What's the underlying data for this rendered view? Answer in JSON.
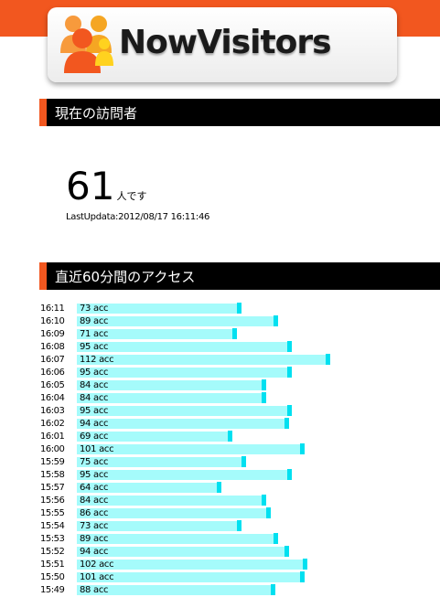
{
  "logo": {
    "text": "NowVisitors",
    "people-icon": "people-group-icon"
  },
  "colors": {
    "orange": "#f2571f",
    "bar": "#a5fbfb",
    "bar_cap": "#00e0f0",
    "header_bg": "#000000"
  },
  "current": {
    "header": "現在の訪問者",
    "count": "61",
    "unit": "人です",
    "last_update": "LastUpdata:2012/08/17 16:11:46"
  },
  "access": {
    "header": "直近60分間のアクセス",
    "rows": [
      {
        "time": "16:11",
        "value": 73,
        "label": "73 acc"
      },
      {
        "time": "16:10",
        "value": 89,
        "label": "89 acc"
      },
      {
        "time": "16:09",
        "value": 71,
        "label": "71 acc"
      },
      {
        "time": "16:08",
        "value": 95,
        "label": "95 acc"
      },
      {
        "time": "16:07",
        "value": 112,
        "label": "112 acc"
      },
      {
        "time": "16:06",
        "value": 95,
        "label": "95 acc"
      },
      {
        "time": "16:05",
        "value": 84,
        "label": "84 acc"
      },
      {
        "time": "16:04",
        "value": 84,
        "label": "84 acc"
      },
      {
        "time": "16:03",
        "value": 95,
        "label": "95 acc"
      },
      {
        "time": "16:02",
        "value": 94,
        "label": "94 acc"
      },
      {
        "time": "16:01",
        "value": 69,
        "label": "69 acc"
      },
      {
        "time": "16:00",
        "value": 101,
        "label": "101 acc"
      },
      {
        "time": "15:59",
        "value": 75,
        "label": "75 acc"
      },
      {
        "time": "15:58",
        "value": 95,
        "label": "95 acc"
      },
      {
        "time": "15:57",
        "value": 64,
        "label": "64 acc"
      },
      {
        "time": "15:56",
        "value": 84,
        "label": "84 acc"
      },
      {
        "time": "15:55",
        "value": 86,
        "label": "86 acc"
      },
      {
        "time": "15:54",
        "value": 73,
        "label": "73 acc"
      },
      {
        "time": "15:53",
        "value": 89,
        "label": "89 acc"
      },
      {
        "time": "15:52",
        "value": 94,
        "label": "94 acc"
      },
      {
        "time": "15:51",
        "value": 102,
        "label": "102 acc"
      },
      {
        "time": "15:50",
        "value": 101,
        "label": "101 acc"
      },
      {
        "time": "15:49",
        "value": 88,
        "label": "88 acc"
      }
    ]
  }
}
